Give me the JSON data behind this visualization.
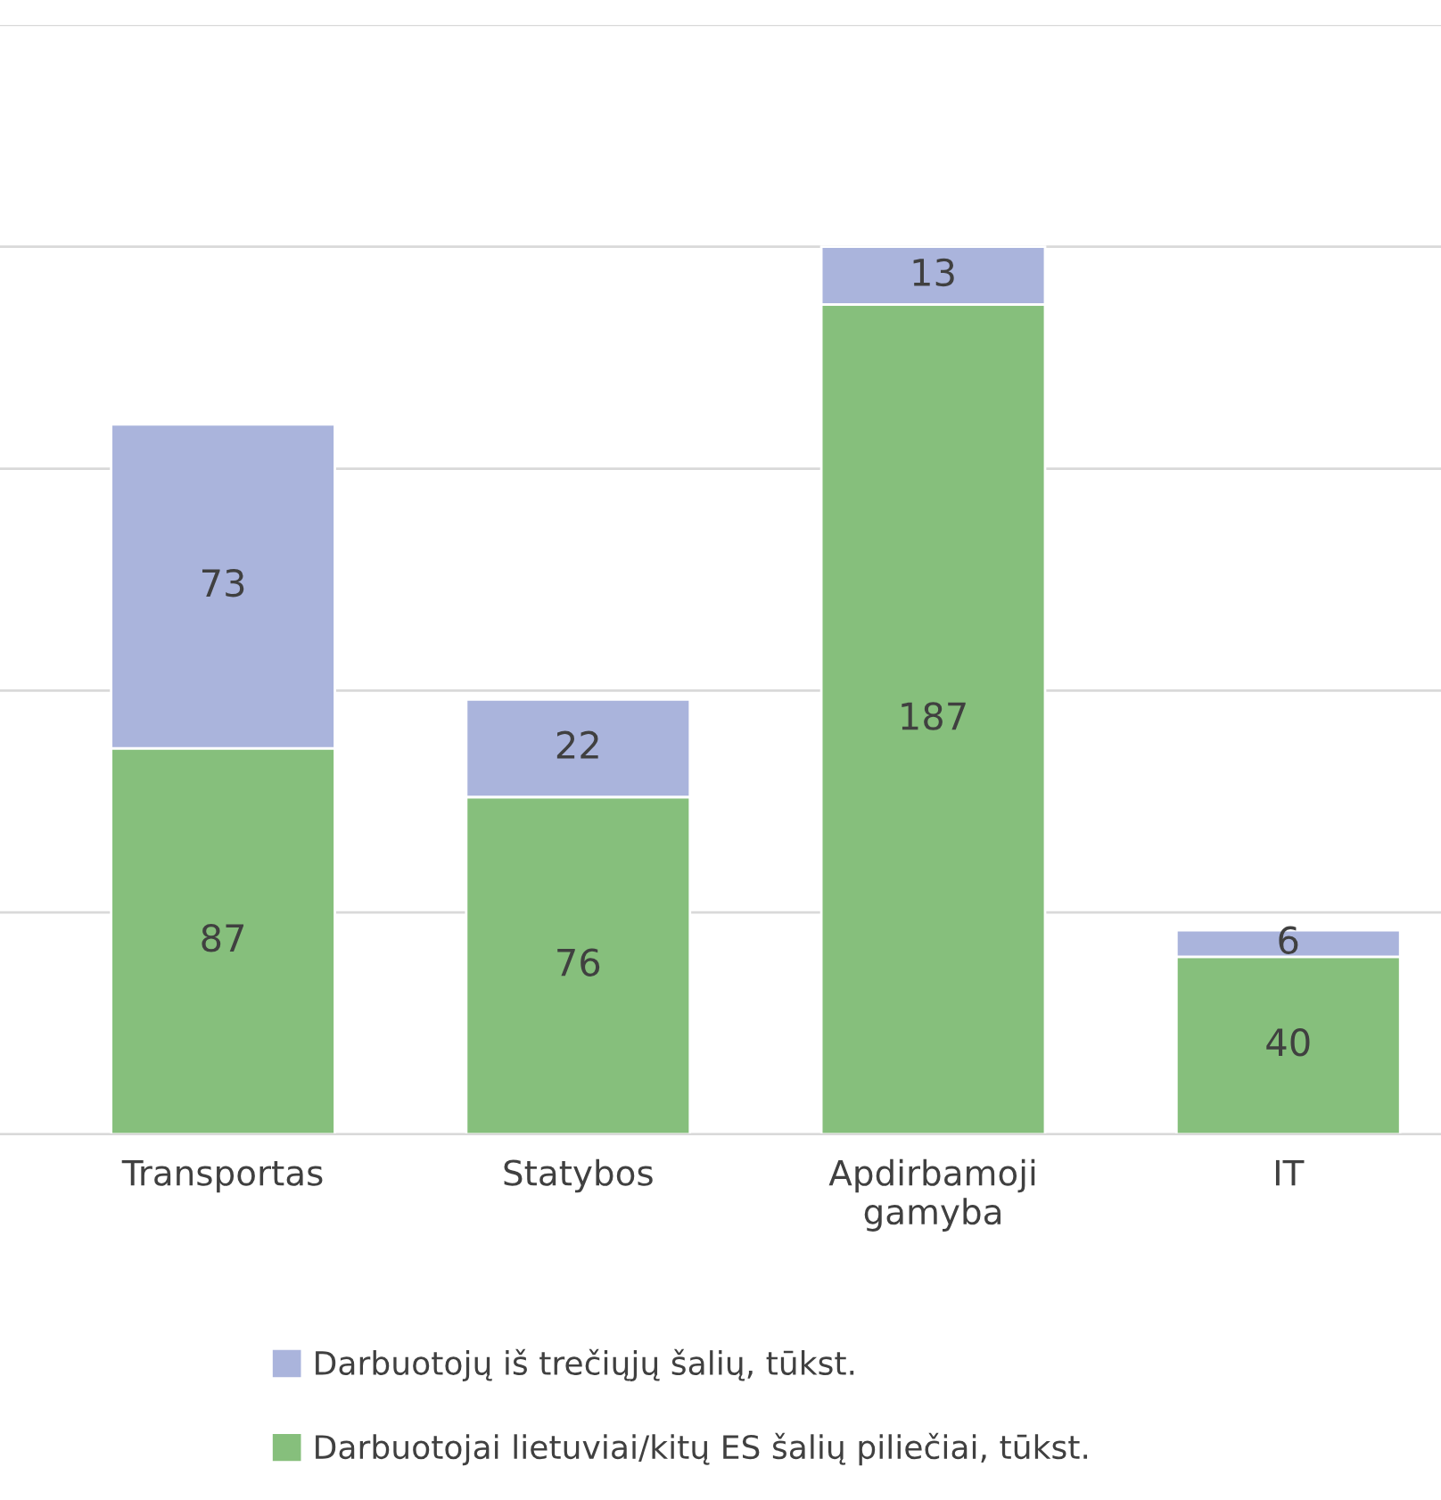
{
  "chart_data": {
    "type": "bar",
    "stacked": true,
    "categories": [
      "Transportas",
      "Statybos",
      "Apdirbamoji gamyba",
      "IT"
    ],
    "series": [
      {
        "name": "Darbuotojai lietuviai/kitų ES šalių piliečiai, tūkst.",
        "color": "#86bf7c",
        "values": [
          87,
          76,
          187,
          40
        ]
      },
      {
        "name": "Darbuotojų iš trečiųjų šalių, tūkst.",
        "color": "#aab4dc",
        "values": [
          73,
          22,
          13,
          6
        ]
      }
    ],
    "ylim": [
      0,
      250
    ],
    "yticks": [
      {
        "value": 0,
        "label": null
      },
      {
        "value": 50,
        "label": null
      },
      {
        "value": 100,
        "label": null
      },
      {
        "value": 150,
        "label": null
      },
      {
        "value": 200,
        "label": null
      },
      {
        "value": 250,
        "label": null
      }
    ],
    "grid": "y",
    "tick_labels": "x",
    "data_labels": true,
    "legend": "bottom"
  }
}
